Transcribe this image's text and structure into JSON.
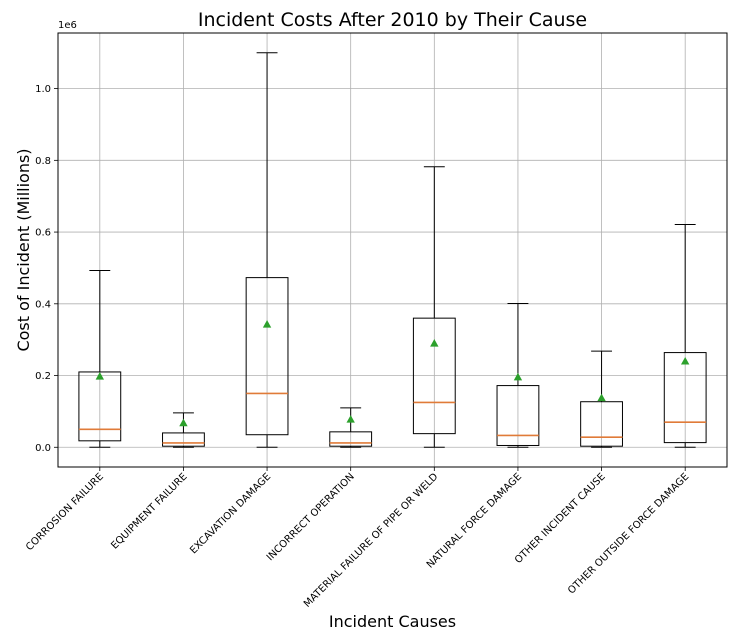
{
  "chart_data": {
    "type": "box",
    "title": "Incident Costs After 2010 by Their Cause",
    "xlabel": "Incident Causes",
    "ylabel": "Cost of Incident (Millions)",
    "y_offset_label": "1e6",
    "ylim": [
      -55000,
      1155000
    ],
    "yticks": [
      0.0,
      0.2,
      0.4,
      0.6,
      0.8,
      1.0
    ],
    "ytick_labels": [
      "0.0",
      "0.2",
      "0.4",
      "0.6",
      "0.8",
      "1.0"
    ],
    "grid": true,
    "colors": {
      "box": "#000000",
      "median": "#e07b39",
      "mean": "#2ca02c",
      "grid": "#b0b0b0"
    },
    "categories": [
      "CORROSION FAILURE",
      "EQUIPMENT FAILURE",
      "EXCAVATION DAMAGE",
      "INCORRECT OPERATION",
      "MATERIAL FAILURE OF PIPE OR WELD",
      "NATURAL FORCE DAMAGE",
      "OTHER INCIDENT CAUSE",
      "OTHER OUTSIDE FORCE DAMAGE"
    ],
    "boxes": [
      {
        "whisker_low": 0,
        "q1": 18000,
        "median": 50000,
        "q3": 210000,
        "whisker_high": 493000,
        "mean": 198000
      },
      {
        "whisker_low": 0,
        "q1": 3000,
        "median": 12000,
        "q3": 40000,
        "whisker_high": 96000,
        "mean": 68000
      },
      {
        "whisker_low": 0,
        "q1": 35000,
        "median": 150000,
        "q3": 473000,
        "whisker_high": 1100000,
        "mean": 343000
      },
      {
        "whisker_low": 0,
        "q1": 3000,
        "median": 12000,
        "q3": 43000,
        "whisker_high": 110000,
        "mean": 78000
      },
      {
        "whisker_low": 0,
        "q1": 38000,
        "median": 125000,
        "q3": 360000,
        "whisker_high": 782000,
        "mean": 290000
      },
      {
        "whisker_low": 0,
        "q1": 5000,
        "median": 33000,
        "q3": 172000,
        "whisker_high": 401000,
        "mean": 196000
      },
      {
        "whisker_low": 0,
        "q1": 3000,
        "median": 28000,
        "q3": 127000,
        "whisker_high": 268000,
        "mean": 138000
      },
      {
        "whisker_low": 0,
        "q1": 13000,
        "median": 70000,
        "q3": 264000,
        "whisker_high": 621000,
        "mean": 240000
      }
    ]
  }
}
